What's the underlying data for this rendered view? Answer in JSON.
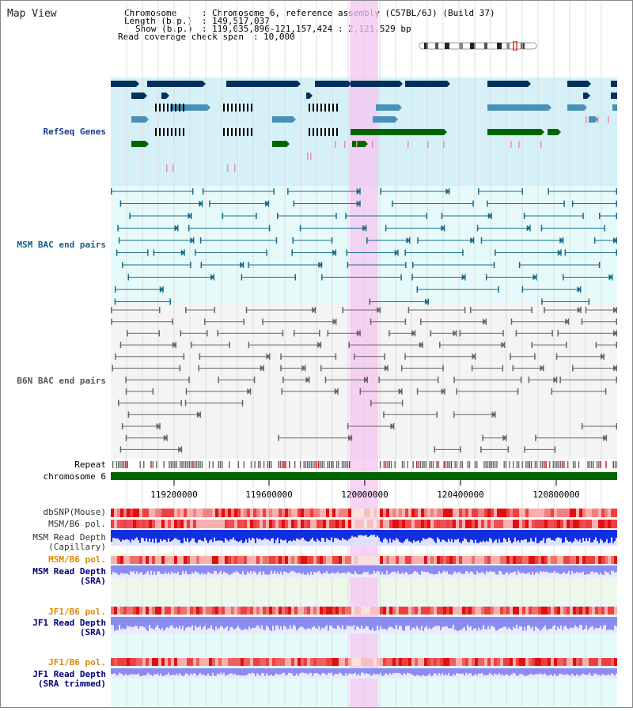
{
  "title": "Map View",
  "info": {
    "chromosome_key": "Chromosome",
    "chromosome_value": "Chromosome 6, reference assembly (C57BL/6J) (Build 37)",
    "length_key": "Length (b.p.)",
    "length_value": "149,517,037",
    "show_key": "Show (b.p.)",
    "show_value": "119,035,896-121,157,424 : 2,121,529 bp",
    "coverage_key": "Read coverage check span",
    "coverage_value": "10,000"
  },
  "tracks": {
    "refseq": "RefSeq Genes",
    "msm_bac": "MSM BAC end pairs",
    "b6n_bac": "B6N BAC end pairs",
    "repeat": "Repeat",
    "chromosome": "chromosome 6",
    "dbsnp": "dbSNP(Mouse)",
    "msm_b6_pol": "MSM/B6 pol.",
    "msm_depth_cap_1": "MSM Read Depth",
    "msm_depth_cap_2": "(Capillary)",
    "msm_b6_pol_2": "MSM/B6 pol.",
    "msm_depth_sra_1": "MSM Read Depth",
    "msm_depth_sra_2": "(SRA)",
    "jf1_pol_1": "JF1/B6 pol.",
    "jf1_depth_1": "JF1 Read Depth",
    "jf1_depth_1b": "(SRA)",
    "jf1_pol_2": "JF1/B6 pol.",
    "jf1_depth_2": "JF1 Read Depth",
    "jf1_depth_2b": "(SRA trimmed)"
  },
  "axis": {
    "ticks": [
      "119200000",
      "119600000",
      "120000000",
      "120400000",
      "120800000"
    ]
  },
  "colors": {
    "refseq_bg": "#d6f0f8",
    "msm_bg": "#e6fafa",
    "b6n_bg": "#f4f4f4",
    "highlight": "#f5c6f0",
    "gene_dark": "#00305c",
    "gene_mid": "#4a90b8",
    "gene_green": "#006600",
    "msm_line": "#1a6c8c",
    "b6n_line": "#666666",
    "chrom_green": "#006400",
    "depth_blue": "#1030e0",
    "depth_sra": "#8c8cf0",
    "label_orange": "#e08a00",
    "label_navy": "#000080",
    "label_teal": "#1a5c80"
  }
}
